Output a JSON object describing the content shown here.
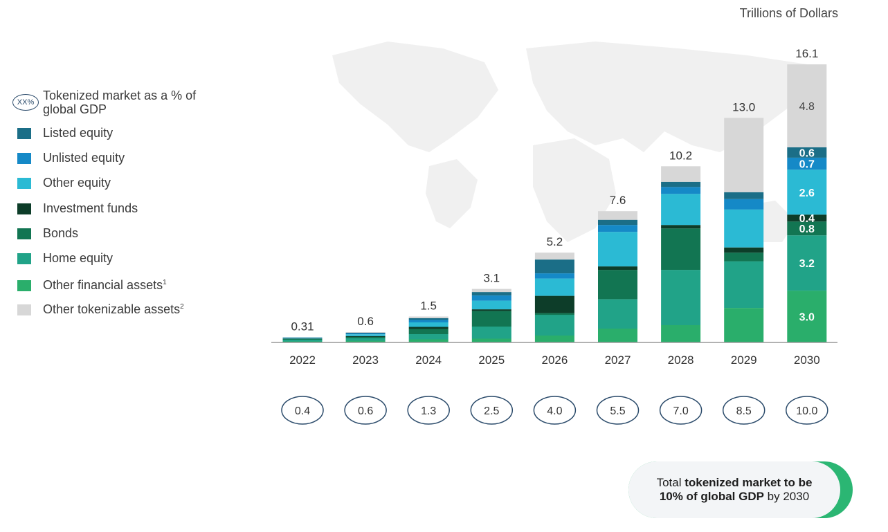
{
  "unit_label": "Trillions of Dollars",
  "legend": {
    "gdp_key_badge": "XX%",
    "gdp_key_label": "Tokenized market as a % of global GDP",
    "items": [
      {
        "label": "Listed equity",
        "sup": "",
        "color": "#1b6e87"
      },
      {
        "label": "Unlisted equity",
        "sup": "",
        "color": "#1589c7"
      },
      {
        "label": "Other equity",
        "sup": "",
        "color": "#2bbad4"
      },
      {
        "label": "Investment funds",
        "sup": "",
        "color": "#0d3d29"
      },
      {
        "label": "Bonds",
        "sup": "",
        "color": "#127552"
      },
      {
        "label": "Home equity",
        "sup": "",
        "color": "#21a388"
      },
      {
        "label": "Other financial assets",
        "sup": "1",
        "color": "#2aae6b"
      },
      {
        "label": "Other tokenizable assets",
        "sup": "2",
        "color": "#d7d7d7"
      }
    ]
  },
  "chart_data": {
    "type": "bar",
    "stacked": true,
    "title": "",
    "ylabel": "Trillions of Dollars",
    "ylim": [
      0,
      16.1
    ],
    "categories": [
      "2022",
      "2023",
      "2024",
      "2025",
      "2026",
      "2027",
      "2028",
      "2029",
      "2030"
    ],
    "totals": [
      "0.31",
      "0.6",
      "1.5",
      "3.1",
      "5.2",
      "7.6",
      "10.2",
      "13.0",
      "16.1"
    ],
    "gdp_percent": [
      "0.4",
      "0.6",
      "1.3",
      "2.5",
      "4.0",
      "5.5",
      "7.0",
      "8.5",
      "10.0"
    ],
    "series": [
      {
        "name": "Other financial assets",
        "color": "#2aae6b",
        "values": [
          0.06,
          0.1,
          0.18,
          0.22,
          0.4,
          0.8,
          1.0,
          2.0,
          3.0
        ]
      },
      {
        "name": "Home equity",
        "color": "#21a388",
        "values": [
          0.1,
          0.14,
          0.3,
          0.7,
          1.2,
          1.7,
          3.2,
          2.7,
          3.2
        ]
      },
      {
        "name": "Bonds",
        "color": "#127552",
        "values": [
          0.05,
          0.08,
          0.3,
          0.9,
          0.1,
          1.7,
          2.4,
          0.5,
          0.8
        ]
      },
      {
        "name": "Investment funds",
        "color": "#0d3d29",
        "values": [
          0.02,
          0.05,
          0.12,
          0.1,
          1.0,
          0.2,
          0.2,
          0.3,
          0.4
        ]
      },
      {
        "name": "Other equity",
        "color": "#2bbad4",
        "values": [
          0.04,
          0.1,
          0.26,
          0.5,
          1.0,
          2.0,
          1.8,
          2.2,
          2.6
        ]
      },
      {
        "name": "Unlisted equity",
        "color": "#1589c7",
        "values": [
          0.02,
          0.05,
          0.14,
          0.3,
          0.3,
          0.4,
          0.4,
          0.6,
          0.7
        ]
      },
      {
        "name": "Listed equity",
        "color": "#1b6e87",
        "values": [
          0.01,
          0.04,
          0.1,
          0.2,
          0.8,
          0.3,
          0.3,
          0.4,
          0.6
        ]
      },
      {
        "name": "Other tokenizable assets",
        "color": "#d7d7d7",
        "values": [
          0.01,
          0.04,
          0.1,
          0.18,
          0.4,
          0.5,
          0.9,
          4.3,
          4.8
        ]
      }
    ],
    "value_labels_2030": [
      {
        "series": "Other financial assets",
        "label": "3.0"
      },
      {
        "series": "Home equity",
        "label": "3.2"
      },
      {
        "series": "Bonds",
        "label": "0.8"
      },
      {
        "series": "Investment funds",
        "label": "0.4"
      },
      {
        "series": "Other equity",
        "label": "2.6"
      },
      {
        "series": "Unlisted equity",
        "label": "0.7"
      },
      {
        "series": "Listed equity",
        "label": "0.6"
      },
      {
        "series": "Other tokenizable assets",
        "label": "4.8"
      }
    ]
  },
  "callout": {
    "prefix": "Total ",
    "bold1": "tokenized market to be",
    "bold2": "10% of global GDP",
    "suffix": " by 2030"
  }
}
